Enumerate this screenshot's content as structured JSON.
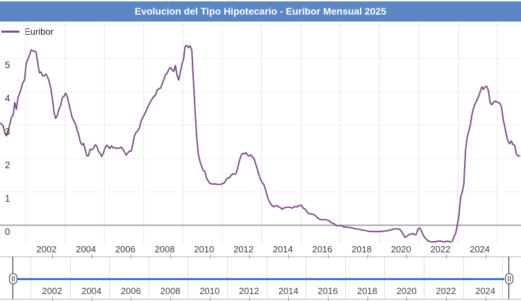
{
  "title": "Evolucion del Tipo Hipotecario - Euribor Mensual 2025",
  "legend": {
    "series_label": "Euribor"
  },
  "colors": {
    "title_bar": "#5b87c6",
    "series_line": "#7c4e84",
    "navigator_line": "#4573c4",
    "zero_line": "#8f8f8f",
    "grid_vertical": "#e7e4e8",
    "grid_horizontal": "#f0edf0"
  },
  "y_axis": {
    "tick_labels": [
      "5",
      "4",
      "3",
      "2",
      "1",
      "0"
    ]
  },
  "x_axis": {
    "tick_labels": [
      "2002",
      "2004",
      "2006",
      "2008",
      "2010",
      "2012",
      "2014",
      "2016",
      "2018",
      "2020",
      "2022",
      "2024"
    ]
  },
  "navigator": {
    "tick_labels": [
      "2002",
      "2004",
      "2006",
      "2008",
      "2010",
      "2012",
      "2014",
      "2016",
      "2018",
      "2020",
      "2022",
      "2024"
    ],
    "left_handle": "range-start-handle",
    "right_handle": "range-end-handle"
  },
  "chart_data": {
    "type": "line",
    "title": "Evolucion del Tipo Hipotecario - Euribor Mensual 2025",
    "xlabel": "",
    "ylabel": "",
    "ylim": [
      -0.6,
      6.05
    ],
    "grid": true,
    "legend_position": "top-left",
    "x_start": "1999-01",
    "x_end": "2025-06",
    "frequency": "monthly",
    "x_tick_labels": [
      "2002",
      "2004",
      "2006",
      "2008",
      "2010",
      "2012",
      "2014",
      "2016",
      "2018",
      "2020",
      "2022",
      "2024"
    ],
    "series": [
      {
        "name": "Euribor",
        "values": [
          3.06,
          3.03,
          2.97,
          2.76,
          2.68,
          2.84,
          3.03,
          3.24,
          3.3,
          3.68,
          3.47,
          3.83,
          3.95,
          4.11,
          4.27,
          4.36,
          4.85,
          4.97,
          5.1,
          5.25,
          5.22,
          5.22,
          5.19,
          4.88,
          4.57,
          4.59,
          4.47,
          4.48,
          4.53,
          4.45,
          4.31,
          4.11,
          3.77,
          3.37,
          3.2,
          3.3,
          3.48,
          3.59,
          3.82,
          3.86,
          3.96,
          3.87,
          3.64,
          3.44,
          3.24,
          3.13,
          3.04,
          2.87,
          2.71,
          2.5,
          2.41,
          2.45,
          2.26,
          2.08,
          2.08,
          2.28,
          2.26,
          2.3,
          2.41,
          2.38,
          2.22,
          2.16,
          2.06,
          2.16,
          2.3,
          2.4,
          2.36,
          2.3,
          2.38,
          2.32,
          2.33,
          2.3,
          2.31,
          2.31,
          2.34,
          2.27,
          2.19,
          2.1,
          2.17,
          2.22,
          2.22,
          2.41,
          2.68,
          2.78,
          2.83,
          2.91,
          3.11,
          3.22,
          3.31,
          3.4,
          3.54,
          3.62,
          3.72,
          3.8,
          3.86,
          3.92,
          4.06,
          4.09,
          4.11,
          4.25,
          4.37,
          4.51,
          4.56,
          4.67,
          4.73,
          4.65,
          4.61,
          4.79,
          4.5,
          4.35,
          4.59,
          4.82,
          4.99,
          5.36,
          5.39,
          5.32,
          5.38,
          5.25,
          4.35,
          3.45,
          2.62,
          2.14,
          1.91,
          1.77,
          1.64,
          1.61,
          1.41,
          1.33,
          1.26,
          1.24,
          1.23,
          1.24,
          1.23,
          1.22,
          1.22,
          1.23,
          1.25,
          1.28,
          1.37,
          1.42,
          1.42,
          1.5,
          1.54,
          1.53,
          1.55,
          1.71,
          1.92,
          2.09,
          2.15,
          2.14,
          2.18,
          2.1,
          2.07,
          2.11,
          2.04,
          2.0,
          1.84,
          1.68,
          1.5,
          1.37,
          1.27,
          1.22,
          1.06,
          0.88,
          0.74,
          0.65,
          0.59,
          0.55,
          0.58,
          0.59,
          0.55,
          0.53,
          0.48,
          0.51,
          0.53,
          0.54,
          0.54,
          0.54,
          0.51,
          0.54,
          0.56,
          0.55,
          0.58,
          0.6,
          0.59,
          0.51,
          0.49,
          0.42,
          0.36,
          0.34,
          0.34,
          0.33,
          0.3,
          0.26,
          0.21,
          0.18,
          0.17,
          0.16,
          0.17,
          0.16,
          0.15,
          0.13,
          0.08,
          0.06,
          0.04,
          -0.01,
          -0.01,
          -0.01,
          -0.01,
          -0.03,
          -0.06,
          -0.05,
          -0.06,
          -0.07,
          -0.07,
          -0.08,
          -0.1,
          -0.11,
          -0.11,
          -0.12,
          -0.13,
          -0.15,
          -0.15,
          -0.16,
          -0.17,
          -0.18,
          -0.19,
          -0.19,
          -0.19,
          -0.19,
          -0.19,
          -0.19,
          -0.19,
          -0.18,
          -0.18,
          -0.17,
          -0.17,
          -0.15,
          -0.15,
          -0.13,
          -0.12,
          -0.11,
          -0.11,
          -0.11,
          -0.13,
          -0.19,
          -0.28,
          -0.36,
          -0.34,
          -0.3,
          -0.27,
          -0.26,
          -0.25,
          -0.29,
          -0.27,
          -0.11,
          -0.08,
          -0.15,
          -0.28,
          -0.36,
          -0.41,
          -0.47,
          -0.48,
          -0.5,
          -0.5,
          -0.5,
          -0.49,
          -0.48,
          -0.48,
          -0.48,
          -0.49,
          -0.5,
          -0.49,
          -0.48,
          -0.49,
          -0.5,
          -0.48,
          -0.34,
          -0.24,
          0.01,
          0.29,
          0.85,
          0.99,
          1.25,
          2.23,
          2.63,
          2.83,
          3.02,
          3.34,
          3.53,
          3.65,
          3.76,
          3.86,
          4.01,
          4.15,
          4.07,
          4.15,
          4.16,
          4.02,
          3.68,
          3.61,
          3.67,
          3.72,
          3.7,
          3.68,
          3.65,
          3.53,
          3.17,
          2.94,
          2.69,
          2.51,
          2.44,
          2.53,
          2.41,
          2.4,
          2.14,
          2.08,
          2.08
        ]
      }
    ]
  }
}
